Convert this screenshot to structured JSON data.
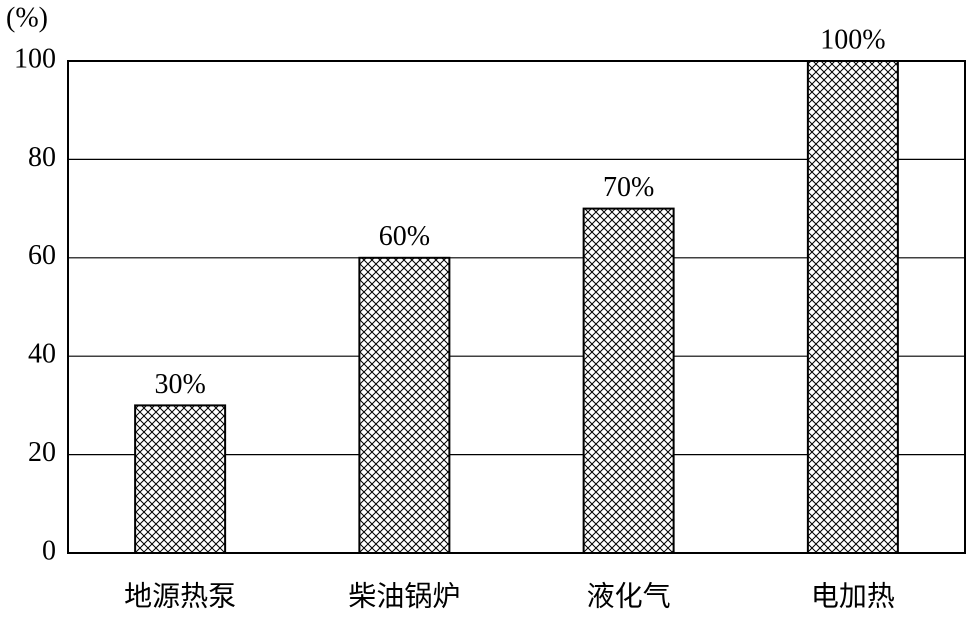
{
  "chart_data": {
    "type": "bar",
    "y_label": "(%)",
    "categories": [
      "地源热泵",
      "柴油锅炉",
      "液化气",
      "电加热"
    ],
    "values": [
      30,
      60,
      70,
      100
    ],
    "value_labels": [
      "30%",
      "60%",
      "70%",
      "100%"
    ],
    "ylim": [
      0,
      100
    ],
    "yticks": [
      0,
      20,
      40,
      60,
      80,
      100
    ],
    "grid": true
  }
}
